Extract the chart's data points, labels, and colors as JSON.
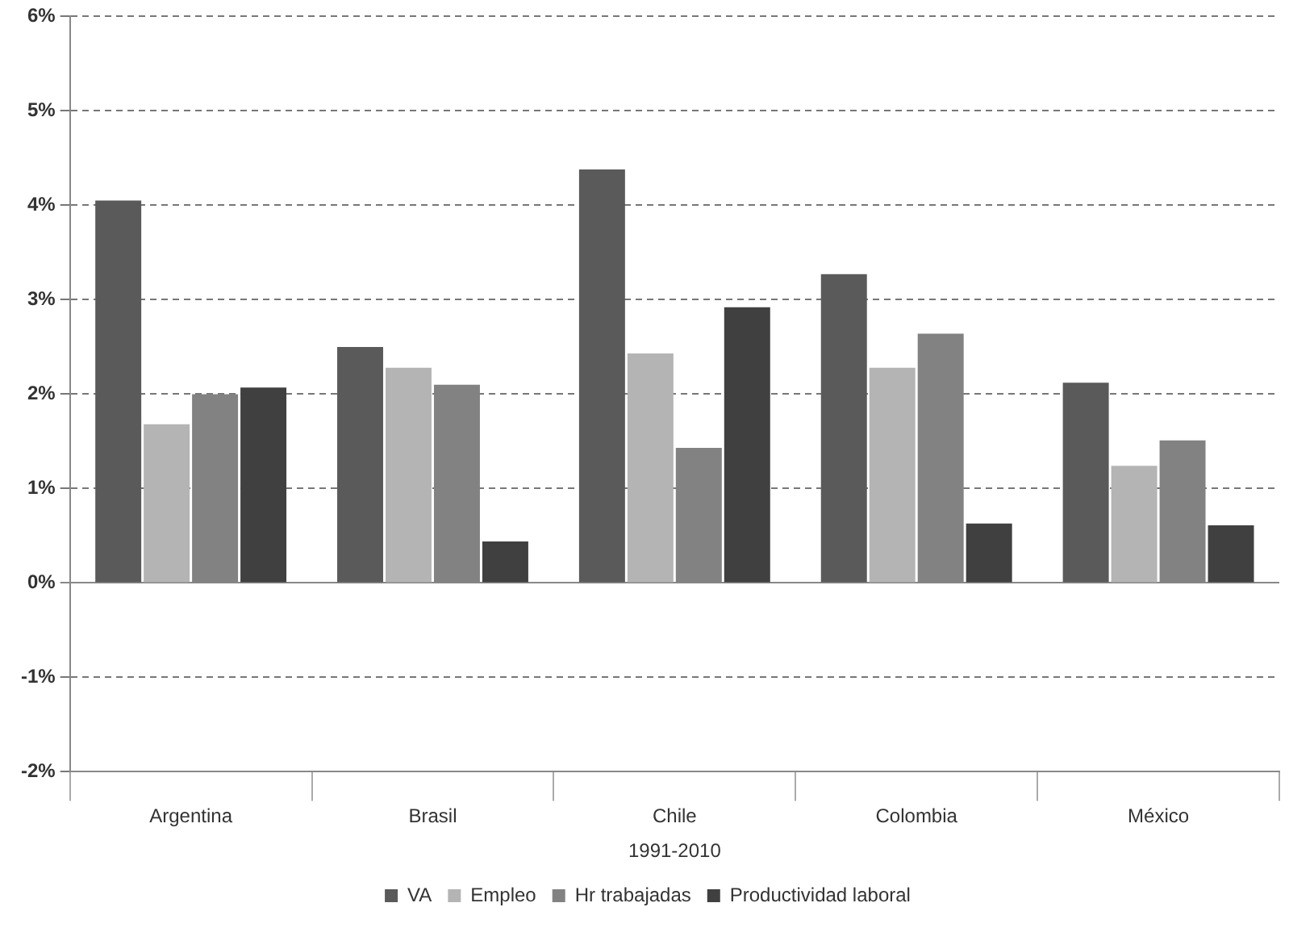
{
  "chart_data": {
    "type": "bar",
    "xlabel": "1991-2010",
    "categories": [
      "Argentina",
      "Brasil",
      "Chile",
      "Colombia",
      "México"
    ],
    "series": [
      {
        "name": "VA",
        "color": "#5a5a5a",
        "values": [
          4.05,
          2.5,
          4.38,
          3.27,
          2.12
        ]
      },
      {
        "name": "Empleo",
        "color": "#b4b4b4",
        "values": [
          1.68,
          2.28,
          2.43,
          2.28,
          1.24
        ]
      },
      {
        "name": "Hr trabajadas",
        "color": "#828282",
        "values": [
          2.0,
          2.1,
          1.43,
          2.64,
          1.51
        ]
      },
      {
        "name": "Productividad laboral",
        "color": "#404040",
        "values": [
          2.07,
          0.44,
          2.92,
          0.63,
          0.61
        ]
      }
    ],
    "ylim": [
      -2,
      6
    ],
    "yticks": [
      {
        "value": -2,
        "label": "-2%"
      },
      {
        "value": -1,
        "label": "-1%"
      },
      {
        "value": 0,
        "label": "0%"
      },
      {
        "value": 1,
        "label": "1%"
      },
      {
        "value": 2,
        "label": "2%"
      },
      {
        "value": 3,
        "label": "3%"
      },
      {
        "value": 4,
        "label": "4%"
      },
      {
        "value": 5,
        "label": "5%"
      },
      {
        "value": 6,
        "label": "6%"
      }
    ],
    "grid": "y",
    "legend": "bottom"
  }
}
